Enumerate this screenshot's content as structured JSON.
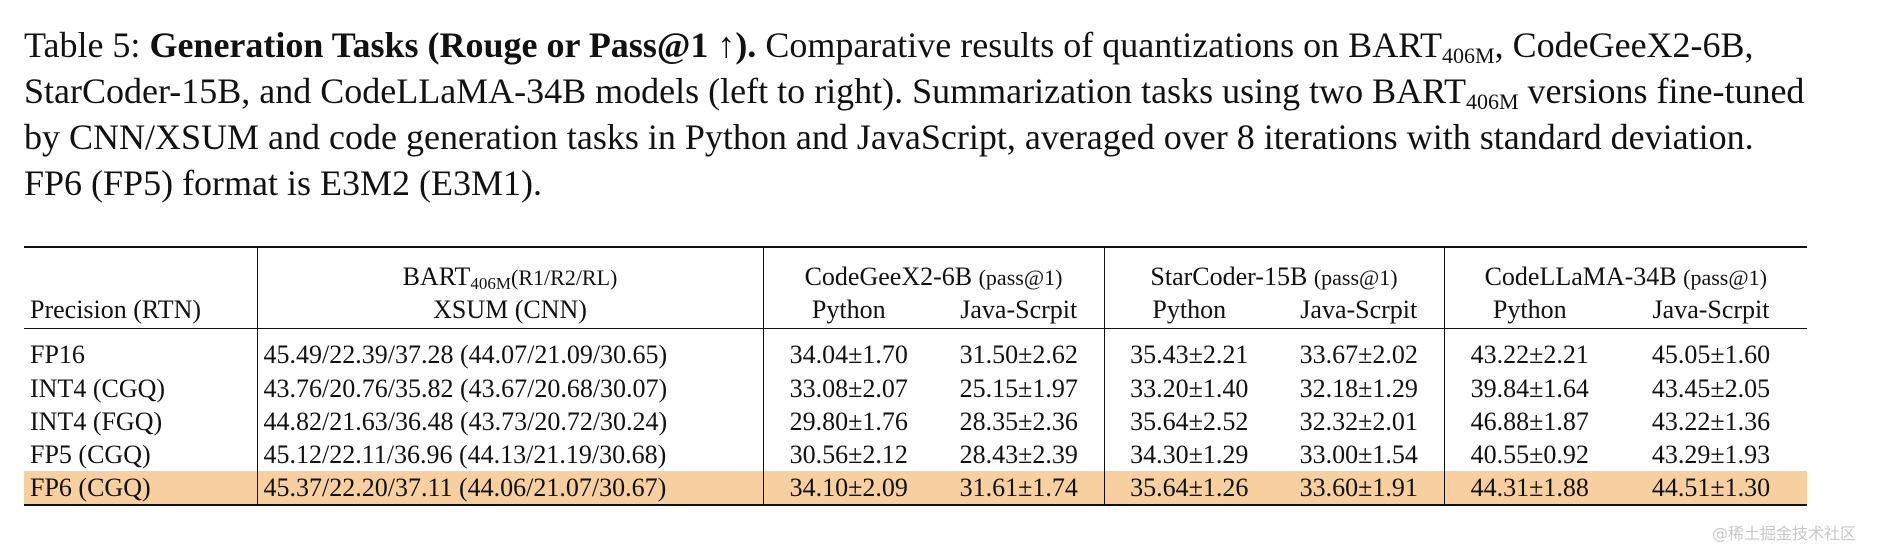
{
  "caption": {
    "label": "Table 5: ",
    "bold_title": "Generation Tasks (Rouge or Pass@1 ↑).",
    "text_1": " Comparative results of quantizations on BART",
    "sub_1": "406M",
    "text_2": ", CodeGeeX2-6B, StarCoder-15B, and CodeLLaMA-34B models (left to right). Summarization tasks using two BART",
    "sub_2": "406M",
    "text_3": " versions fine-tuned by CNN/XSUM and code generation tasks in Python and JavaScript, averaged over 8 iterations with standard deviation. FP6 (FP5) format is E3M2 (E3M1)."
  },
  "table": {
    "header": {
      "precision": "Precision (RTN)",
      "bart_prefix": "BART",
      "bart_sub": "406M",
      "bart_suffix": "(R1/R2/RL)",
      "bart_sub_header": "XSUM (CNN)",
      "codegeex": "CodeGeeX2-6B",
      "starcoder": "StarCoder-15B",
      "codellama": "CodeLLaMA-34B",
      "pass_note": "(pass@1)",
      "python": "Python",
      "javascript": "Java-Scrpit"
    },
    "rows": [
      {
        "precision": "FP16",
        "bart": "45.49/22.39/37.28 (44.07/21.09/30.65)",
        "cg_py": "34.04±1.70",
        "cg_js": "31.50±2.62",
        "sc_py": "35.43±2.21",
        "sc_js": "33.67±2.02",
        "cl_py": "43.22±2.21",
        "cl_js": "45.05±1.60"
      },
      {
        "precision": "INT4 (CGQ)",
        "bart": "43.76/20.76/35.82 (43.67/20.68/30.07)",
        "cg_py": "33.08±2.07",
        "cg_js": "25.15±1.97",
        "sc_py": "33.20±1.40",
        "sc_js": "32.18±1.29",
        "cl_py": "39.84±1.64",
        "cl_js": "43.45±2.05"
      },
      {
        "precision": "INT4 (FGQ)",
        "bart": "44.82/21.63/36.48 (43.73/20.72/30.24)",
        "cg_py": "29.80±1.76",
        "cg_js": "28.35±2.36",
        "sc_py": "35.64±2.52",
        "sc_js": "32.32±2.01",
        "cl_py": "46.88±1.87",
        "cl_js": "43.22±1.36"
      },
      {
        "precision": "FP5 (CGQ)",
        "bart": "45.12/22.11/36.96 (44.13/21.19/30.68)",
        "cg_py": "30.56±2.12",
        "cg_js": "28.43±2.39",
        "sc_py": "34.30±1.29",
        "sc_js": "33.00±1.54",
        "cl_py": "40.55±0.92",
        "cl_js": "43.29±1.93"
      },
      {
        "precision": "FP6 (CGQ)",
        "bart": "45.37/22.20/37.11 (44.06/21.07/30.67)",
        "cg_py": "34.10±2.09",
        "cg_js": "31.61±1.74",
        "sc_py": "35.64±1.26",
        "sc_js": "33.60±1.91",
        "cl_py": "44.31±1.88",
        "cl_js": "44.51±1.30"
      }
    ],
    "highlight_row_color": "#f7cfa0"
  },
  "watermark": "@稀土掘金技术社区"
}
